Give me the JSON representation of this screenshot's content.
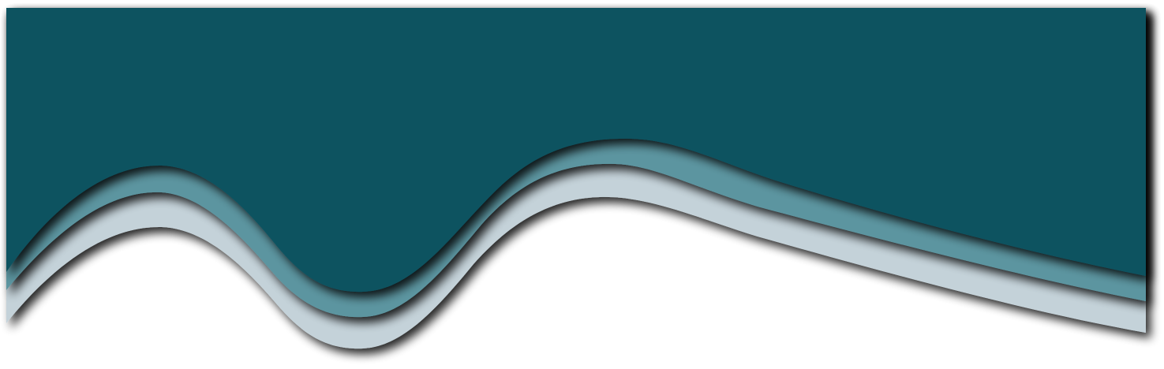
{
  "colors": {
    "background": "#ffffff",
    "dark_teal": "#115260",
    "medium_teal": "#5b95a0",
    "light_gray_blue": "#c4d2d9",
    "shadow": "#000000"
  },
  "layers": [
    {
      "name": "light-gray-blue-wave",
      "color": "#c4d2d9"
    },
    {
      "name": "medium-teal-wave",
      "color": "#5b95a0"
    },
    {
      "name": "dark-teal-wave",
      "color": "#115260"
    }
  ]
}
